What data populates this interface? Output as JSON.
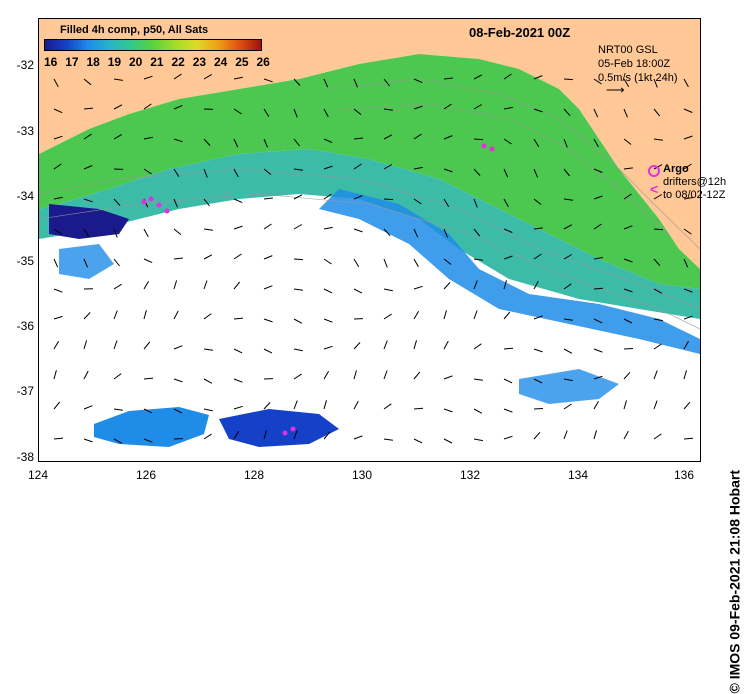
{
  "title": "08-Feb-2021 00Z",
  "legend": {
    "title": "Filled 4h comp, p50, All Sats",
    "colorbar_ticks": [
      "16",
      "17",
      "18",
      "19",
      "20",
      "21",
      "22",
      "23",
      "24",
      "25",
      "26"
    ],
    "colors": [
      "#1a1a8c",
      "#1540c8",
      "#1f8ce8",
      "#28b4c8",
      "#32c88c",
      "#5ad23c",
      "#a0dc28",
      "#dcdc28",
      "#f0a014",
      "#e05010",
      "#a01010"
    ]
  },
  "current_info": {
    "line1": "NRT00 GSL",
    "line2": "05-Feb 18:00Z",
    "line3": "0.5m/s (1kt 24h)"
  },
  "argo": {
    "label": "Argo",
    "line2": "drifters@12h",
    "line3": "to 08/02-12Z",
    "color": "#e030e0"
  },
  "credit": "© IMOS 09-Feb-2021 21:08 Hobart",
  "axes": {
    "y_labels": [
      "-32",
      "-33",
      "-34",
      "-35",
      "-36",
      "-37",
      "-38"
    ],
    "x_labels": [
      "124",
      "126",
      "128",
      "130",
      "132",
      "134",
      "136"
    ]
  },
  "colors": {
    "land": "#ffc896",
    "no_data": "#ffffff",
    "warm_water": "#4cc850",
    "mid_water": "#28b4a0",
    "cool_water": "#1f8ce8",
    "cold_water": "#1a1a8c"
  }
}
